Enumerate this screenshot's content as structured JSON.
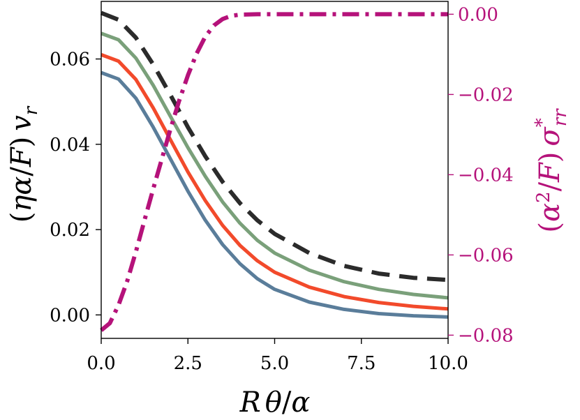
{
  "chart_data": {
    "type": "line",
    "title": "",
    "xlabel": "Rθ/α",
    "ylabel_left": "(ηα/F) v_r",
    "ylabel_right": "(α²/F) σ*_rr",
    "xlim": [
      0,
      10
    ],
    "ylim_left": [
      -0.0055,
      0.0735
    ],
    "ylim_right": [
      -0.0808,
      0.0032
    ],
    "x_ticks": [
      0,
      2.5,
      5,
      7.5,
      10
    ],
    "x_tick_labels": [
      "0.0",
      "2.5",
      "5.0",
      "7.5",
      "10.0"
    ],
    "y_left_ticks": [
      0,
      0.02,
      0.04,
      0.06
    ],
    "y_left_tick_labels": [
      "0.00",
      "0.02",
      "0.04",
      "0.06"
    ],
    "y_right_ticks": [
      0,
      -0.02,
      -0.04,
      -0.06,
      -0.08
    ],
    "y_right_tick_labels": [
      "0.00",
      "−0.02",
      "−0.04",
      "−0.06",
      "−0.08"
    ],
    "grid": false,
    "legend": "none",
    "series": [
      {
        "axis": "left",
        "color": "#5a7d9a",
        "style": "solid",
        "x": [
          0,
          0.5,
          1,
          1.5,
          2,
          2.5,
          3,
          3.5,
          4,
          4.5,
          5,
          6,
          7,
          8,
          9,
          10
        ],
        "y": [
          0.0568,
          0.0553,
          0.0508,
          0.044,
          0.0365,
          0.029,
          0.0222,
          0.0165,
          0.012,
          0.0085,
          0.006,
          0.003,
          0.0013,
          0.0003,
          -0.0002,
          -0.0005
        ]
      },
      {
        "axis": "left",
        "color": "#f24a2b",
        "style": "solid",
        "x": [
          0,
          0.5,
          1,
          1.5,
          2,
          2.5,
          3,
          3.5,
          4,
          4.5,
          5,
          6,
          7,
          8,
          9,
          10
        ],
        "y": [
          0.061,
          0.0595,
          0.0552,
          0.0485,
          0.041,
          0.0335,
          0.0268,
          0.021,
          0.0163,
          0.0127,
          0.01,
          0.0065,
          0.0043,
          0.0029,
          0.002,
          0.0014
        ]
      },
      {
        "axis": "left",
        "color": "#7aa07a",
        "style": "solid",
        "x": [
          0,
          0.5,
          1,
          1.5,
          2,
          2.5,
          3,
          3.5,
          4,
          4.5,
          5,
          6,
          7,
          8,
          9,
          10
        ],
        "y": [
          0.066,
          0.0645,
          0.0602,
          0.0538,
          0.0465,
          0.0392,
          0.0325,
          0.0265,
          0.0215,
          0.0175,
          0.0145,
          0.0105,
          0.0078,
          0.006,
          0.0048,
          0.004
        ]
      },
      {
        "axis": "left",
        "color": "#2b2b2b",
        "style": "dashed",
        "x": [
          0,
          0.5,
          1,
          1.5,
          2,
          2.5,
          3,
          3.5,
          4,
          4.5,
          5,
          6,
          7,
          8,
          9,
          10
        ],
        "y": [
          0.0708,
          0.0692,
          0.065,
          0.0587,
          0.0515,
          0.044,
          0.0372,
          0.0312,
          0.0262,
          0.0222,
          0.019,
          0.0145,
          0.0115,
          0.0097,
          0.0087,
          0.0082
        ]
      },
      {
        "axis": "right",
        "color": "#b5127a",
        "style": "dashdot",
        "x": [
          0,
          0.25,
          0.5,
          0.75,
          1,
          1.25,
          1.5,
          1.75,
          2,
          2.25,
          2.5,
          2.75,
          3,
          3.25,
          3.5,
          3.75,
          4,
          4.5,
          5,
          6,
          7,
          8,
          9,
          10
        ],
        "y": [
          -0.0788,
          -0.077,
          -0.0725,
          -0.0665,
          -0.0592,
          -0.0513,
          -0.0435,
          -0.036,
          -0.0285,
          -0.0215,
          -0.0152,
          -0.0098,
          -0.0056,
          -0.0028,
          -0.0012,
          -0.0004,
          -0.0001,
          0,
          0,
          0,
          0,
          0,
          0,
          0
        ]
      }
    ]
  }
}
